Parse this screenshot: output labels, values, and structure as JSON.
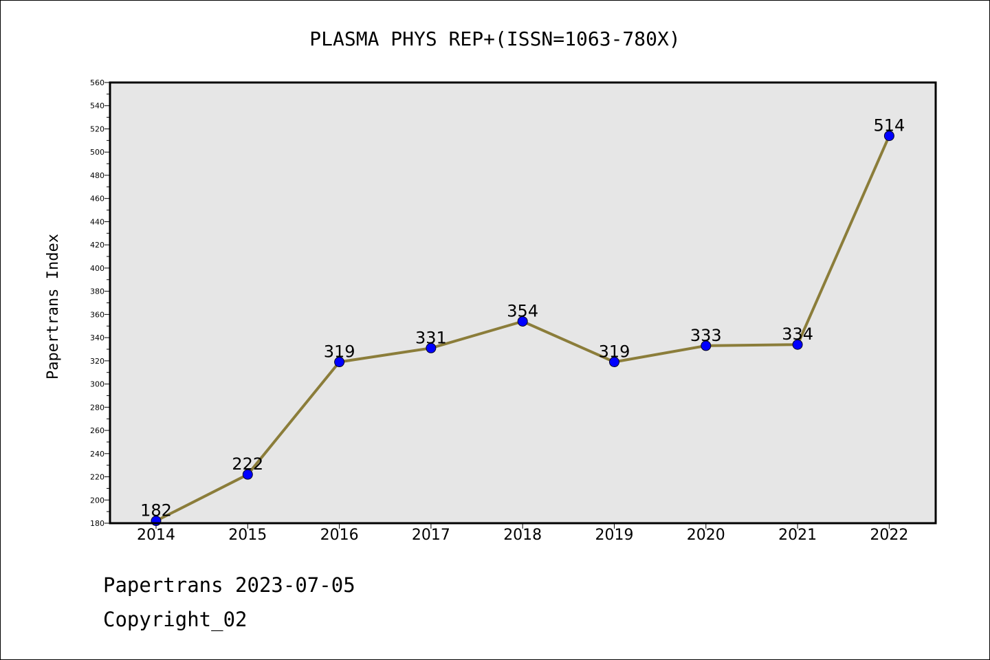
{
  "chart_data": {
    "type": "line",
    "title": "PLASMA PHYS REP+(ISSN=1063-780X)",
    "xlabel": "",
    "ylabel": "Papertrans Index",
    "categories": [
      "2014",
      "2015",
      "2016",
      "2017",
      "2018",
      "2019",
      "2020",
      "2021",
      "2022"
    ],
    "series": [
      {
        "values": [
          182,
          222,
          319,
          331,
          354,
          319,
          333,
          334,
          514
        ]
      }
    ],
    "ylim": [
      180,
      560
    ],
    "y_ticks": [
      180,
      200,
      220,
      240,
      260,
      280,
      300,
      320,
      340,
      360,
      380,
      400,
      420,
      440,
      460,
      480,
      500,
      520,
      540,
      560
    ],
    "grid": false,
    "legend": "none",
    "data_labels": true,
    "colors": {
      "line": "#8b7d3a",
      "marker": "#0000ff",
      "plot_background": "#e6e6e6"
    }
  },
  "footer": {
    "line1": "Papertrans 2023-07-05",
    "line2": "Copyright_02"
  }
}
